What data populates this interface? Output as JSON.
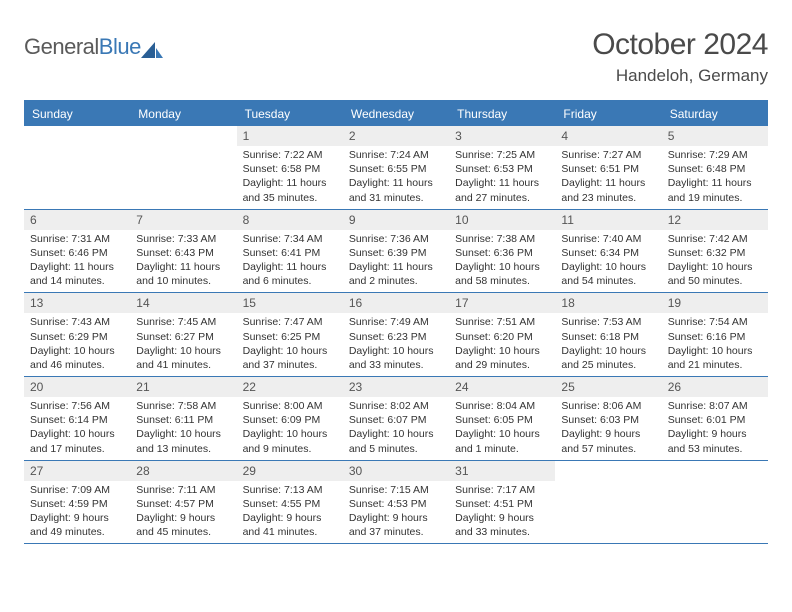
{
  "logo": {
    "text1": "General",
    "text2": "Blue"
  },
  "title": "October 2024",
  "location": "Handeloh, Germany",
  "colors": {
    "brand_blue": "#3a78b5",
    "header_gray": "#eeeeee",
    "text": "#333333",
    "title_gray": "#4a4a4a",
    "white": "#ffffff"
  },
  "dayNames": [
    "Sunday",
    "Monday",
    "Tuesday",
    "Wednesday",
    "Thursday",
    "Friday",
    "Saturday"
  ],
  "weeks": [
    [
      {
        "n": "",
        "sr": "",
        "ss": "",
        "dl": ""
      },
      {
        "n": "",
        "sr": "",
        "ss": "",
        "dl": ""
      },
      {
        "n": "1",
        "sr": "Sunrise: 7:22 AM",
        "ss": "Sunset: 6:58 PM",
        "dl": "Daylight: 11 hours and 35 minutes."
      },
      {
        "n": "2",
        "sr": "Sunrise: 7:24 AM",
        "ss": "Sunset: 6:55 PM",
        "dl": "Daylight: 11 hours and 31 minutes."
      },
      {
        "n": "3",
        "sr": "Sunrise: 7:25 AM",
        "ss": "Sunset: 6:53 PM",
        "dl": "Daylight: 11 hours and 27 minutes."
      },
      {
        "n": "4",
        "sr": "Sunrise: 7:27 AM",
        "ss": "Sunset: 6:51 PM",
        "dl": "Daylight: 11 hours and 23 minutes."
      },
      {
        "n": "5",
        "sr": "Sunrise: 7:29 AM",
        "ss": "Sunset: 6:48 PM",
        "dl": "Daylight: 11 hours and 19 minutes."
      }
    ],
    [
      {
        "n": "6",
        "sr": "Sunrise: 7:31 AM",
        "ss": "Sunset: 6:46 PM",
        "dl": "Daylight: 11 hours and 14 minutes."
      },
      {
        "n": "7",
        "sr": "Sunrise: 7:33 AM",
        "ss": "Sunset: 6:43 PM",
        "dl": "Daylight: 11 hours and 10 minutes."
      },
      {
        "n": "8",
        "sr": "Sunrise: 7:34 AM",
        "ss": "Sunset: 6:41 PM",
        "dl": "Daylight: 11 hours and 6 minutes."
      },
      {
        "n": "9",
        "sr": "Sunrise: 7:36 AM",
        "ss": "Sunset: 6:39 PM",
        "dl": "Daylight: 11 hours and 2 minutes."
      },
      {
        "n": "10",
        "sr": "Sunrise: 7:38 AM",
        "ss": "Sunset: 6:36 PM",
        "dl": "Daylight: 10 hours and 58 minutes."
      },
      {
        "n": "11",
        "sr": "Sunrise: 7:40 AM",
        "ss": "Sunset: 6:34 PM",
        "dl": "Daylight: 10 hours and 54 minutes."
      },
      {
        "n": "12",
        "sr": "Sunrise: 7:42 AM",
        "ss": "Sunset: 6:32 PM",
        "dl": "Daylight: 10 hours and 50 minutes."
      }
    ],
    [
      {
        "n": "13",
        "sr": "Sunrise: 7:43 AM",
        "ss": "Sunset: 6:29 PM",
        "dl": "Daylight: 10 hours and 46 minutes."
      },
      {
        "n": "14",
        "sr": "Sunrise: 7:45 AM",
        "ss": "Sunset: 6:27 PM",
        "dl": "Daylight: 10 hours and 41 minutes."
      },
      {
        "n": "15",
        "sr": "Sunrise: 7:47 AM",
        "ss": "Sunset: 6:25 PM",
        "dl": "Daylight: 10 hours and 37 minutes."
      },
      {
        "n": "16",
        "sr": "Sunrise: 7:49 AM",
        "ss": "Sunset: 6:23 PM",
        "dl": "Daylight: 10 hours and 33 minutes."
      },
      {
        "n": "17",
        "sr": "Sunrise: 7:51 AM",
        "ss": "Sunset: 6:20 PM",
        "dl": "Daylight: 10 hours and 29 minutes."
      },
      {
        "n": "18",
        "sr": "Sunrise: 7:53 AM",
        "ss": "Sunset: 6:18 PM",
        "dl": "Daylight: 10 hours and 25 minutes."
      },
      {
        "n": "19",
        "sr": "Sunrise: 7:54 AM",
        "ss": "Sunset: 6:16 PM",
        "dl": "Daylight: 10 hours and 21 minutes."
      }
    ],
    [
      {
        "n": "20",
        "sr": "Sunrise: 7:56 AM",
        "ss": "Sunset: 6:14 PM",
        "dl": "Daylight: 10 hours and 17 minutes."
      },
      {
        "n": "21",
        "sr": "Sunrise: 7:58 AM",
        "ss": "Sunset: 6:11 PM",
        "dl": "Daylight: 10 hours and 13 minutes."
      },
      {
        "n": "22",
        "sr": "Sunrise: 8:00 AM",
        "ss": "Sunset: 6:09 PM",
        "dl": "Daylight: 10 hours and 9 minutes."
      },
      {
        "n": "23",
        "sr": "Sunrise: 8:02 AM",
        "ss": "Sunset: 6:07 PM",
        "dl": "Daylight: 10 hours and 5 minutes."
      },
      {
        "n": "24",
        "sr": "Sunrise: 8:04 AM",
        "ss": "Sunset: 6:05 PM",
        "dl": "Daylight: 10 hours and 1 minute."
      },
      {
        "n": "25",
        "sr": "Sunrise: 8:06 AM",
        "ss": "Sunset: 6:03 PM",
        "dl": "Daylight: 9 hours and 57 minutes."
      },
      {
        "n": "26",
        "sr": "Sunrise: 8:07 AM",
        "ss": "Sunset: 6:01 PM",
        "dl": "Daylight: 9 hours and 53 minutes."
      }
    ],
    [
      {
        "n": "27",
        "sr": "Sunrise: 7:09 AM",
        "ss": "Sunset: 4:59 PM",
        "dl": "Daylight: 9 hours and 49 minutes."
      },
      {
        "n": "28",
        "sr": "Sunrise: 7:11 AM",
        "ss": "Sunset: 4:57 PM",
        "dl": "Daylight: 9 hours and 45 minutes."
      },
      {
        "n": "29",
        "sr": "Sunrise: 7:13 AM",
        "ss": "Sunset: 4:55 PM",
        "dl": "Daylight: 9 hours and 41 minutes."
      },
      {
        "n": "30",
        "sr": "Sunrise: 7:15 AM",
        "ss": "Sunset: 4:53 PM",
        "dl": "Daylight: 9 hours and 37 minutes."
      },
      {
        "n": "31",
        "sr": "Sunrise: 7:17 AM",
        "ss": "Sunset: 4:51 PM",
        "dl": "Daylight: 9 hours and 33 minutes."
      },
      {
        "n": "",
        "sr": "",
        "ss": "",
        "dl": ""
      },
      {
        "n": "",
        "sr": "",
        "ss": "",
        "dl": ""
      }
    ]
  ]
}
